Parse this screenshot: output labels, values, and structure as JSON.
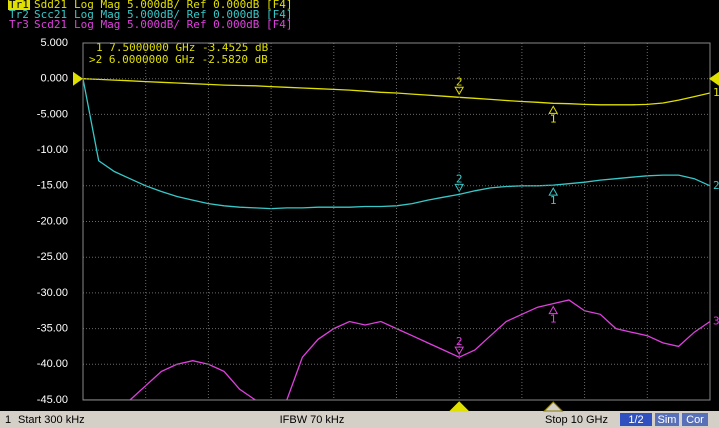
{
  "chart_data": {
    "type": "line",
    "x": [
      0.0003,
      0.25,
      0.5,
      0.75,
      1,
      1.25,
      1.5,
      1.75,
      2,
      2.25,
      2.5,
      2.75,
      3,
      3.25,
      3.5,
      3.75,
      4,
      4.25,
      4.5,
      4.75,
      5,
      5.25,
      5.5,
      5.75,
      6,
      6.25,
      6.5,
      6.75,
      7,
      7.25,
      7.5,
      7.75,
      8,
      8.25,
      8.5,
      8.75,
      9,
      9.25,
      9.5,
      9.75,
      10
    ],
    "xlim": [
      0.0003,
      10
    ],
    "ylim": [
      -45,
      5
    ],
    "yticks": [
      {
        "value": 5,
        "label": "5.000"
      },
      {
        "value": 0,
        "label": "0.000"
      },
      {
        "value": -5,
        "label": "-5.000"
      },
      {
        "value": -10,
        "label": "-10.00"
      },
      {
        "value": -15,
        "label": "-15.00"
      },
      {
        "value": -20,
        "label": "-20.00"
      },
      {
        "value": -25,
        "label": "-25.00"
      },
      {
        "value": -30,
        "label": "-30.00"
      },
      {
        "value": -35,
        "label": "-35.00"
      },
      {
        "value": -40,
        "label": "-40.00"
      },
      {
        "value": -45,
        "label": "-45.00"
      }
    ],
    "grid": true,
    "ref_value": 0,
    "series": [
      {
        "trace": "Tr1",
        "name": "Sdd21",
        "format": "Log Mag 5.000dB/ Ref 0.000dB [F4]",
        "end_label": "1",
        "color": "#e0e000",
        "values": [
          0,
          -0.1,
          -0.2,
          -0.3,
          -0.4,
          -0.5,
          -0.6,
          -0.7,
          -0.8,
          -0.9,
          -0.95,
          -1.0,
          -1.1,
          -1.2,
          -1.3,
          -1.4,
          -1.5,
          -1.6,
          -1.75,
          -1.9,
          -2.0,
          -2.15,
          -2.3,
          -2.45,
          -2.6,
          -2.75,
          -2.9,
          -3.05,
          -3.2,
          -3.3,
          -3.45,
          -3.5,
          -3.6,
          -3.65,
          -3.65,
          -3.65,
          -3.6,
          -3.4,
          -3.0,
          -2.5,
          -2.0
        ]
      },
      {
        "trace": "Tr2",
        "name": "Scc21",
        "format": "Log Mag 5.000dB/ Ref 0.000dB [F4]",
        "end_label": "2",
        "color": "#38c8c8",
        "values": [
          0,
          -11.5,
          -13,
          -14,
          -15,
          -15.8,
          -16.5,
          -17,
          -17.5,
          -17.8,
          -18,
          -18.1,
          -18.2,
          -18.1,
          -18.1,
          -18,
          -18,
          -18,
          -17.9,
          -17.9,
          -17.8,
          -17.5,
          -17,
          -16.6,
          -16.2,
          -15.7,
          -15.3,
          -15.1,
          -15,
          -15,
          -14.9,
          -14.7,
          -14.5,
          -14.2,
          -14,
          -13.8,
          -13.6,
          -13.5,
          -13.5,
          -14,
          -15
        ]
      },
      {
        "trace": "Tr3",
        "name": "Scd21",
        "format": "Log Mag 5.000dB/ Ref 0.000dB [F4]",
        "end_label": "3",
        "color": "#e040e0",
        "values": [
          -45,
          -45,
          -45,
          -45,
          -43,
          -41,
          -40,
          -39.5,
          -40,
          -41,
          -43.5,
          -45,
          null,
          -45,
          -39,
          -36.5,
          -35,
          -34,
          -34.5,
          -34,
          -35,
          -36,
          -37,
          -38,
          -39,
          -38,
          -36,
          -34,
          -33,
          -32,
          -31.5,
          -31,
          -32.5,
          -33,
          -35,
          -35.5,
          -36,
          -37,
          -37.5,
          -35.5,
          -34
        ]
      }
    ],
    "markers": [
      {
        "label": "1",
        "x": 7.5
      },
      {
        "label": "2",
        "x": 6
      }
    ],
    "active_marker": "2",
    "marker_readouts": [
      "1   7.5000000 GHz -3.4525 dB",
      ">2  6.0000000 GHz -2.5820 dB"
    ],
    "channel": "1",
    "start_label": "Start 300 kHz",
    "ifbw_label": "IFBW 70 kHz",
    "stop_label": "Stop 10 GHz",
    "status": [
      "1/2",
      "Sim",
      "Cor"
    ]
  }
}
